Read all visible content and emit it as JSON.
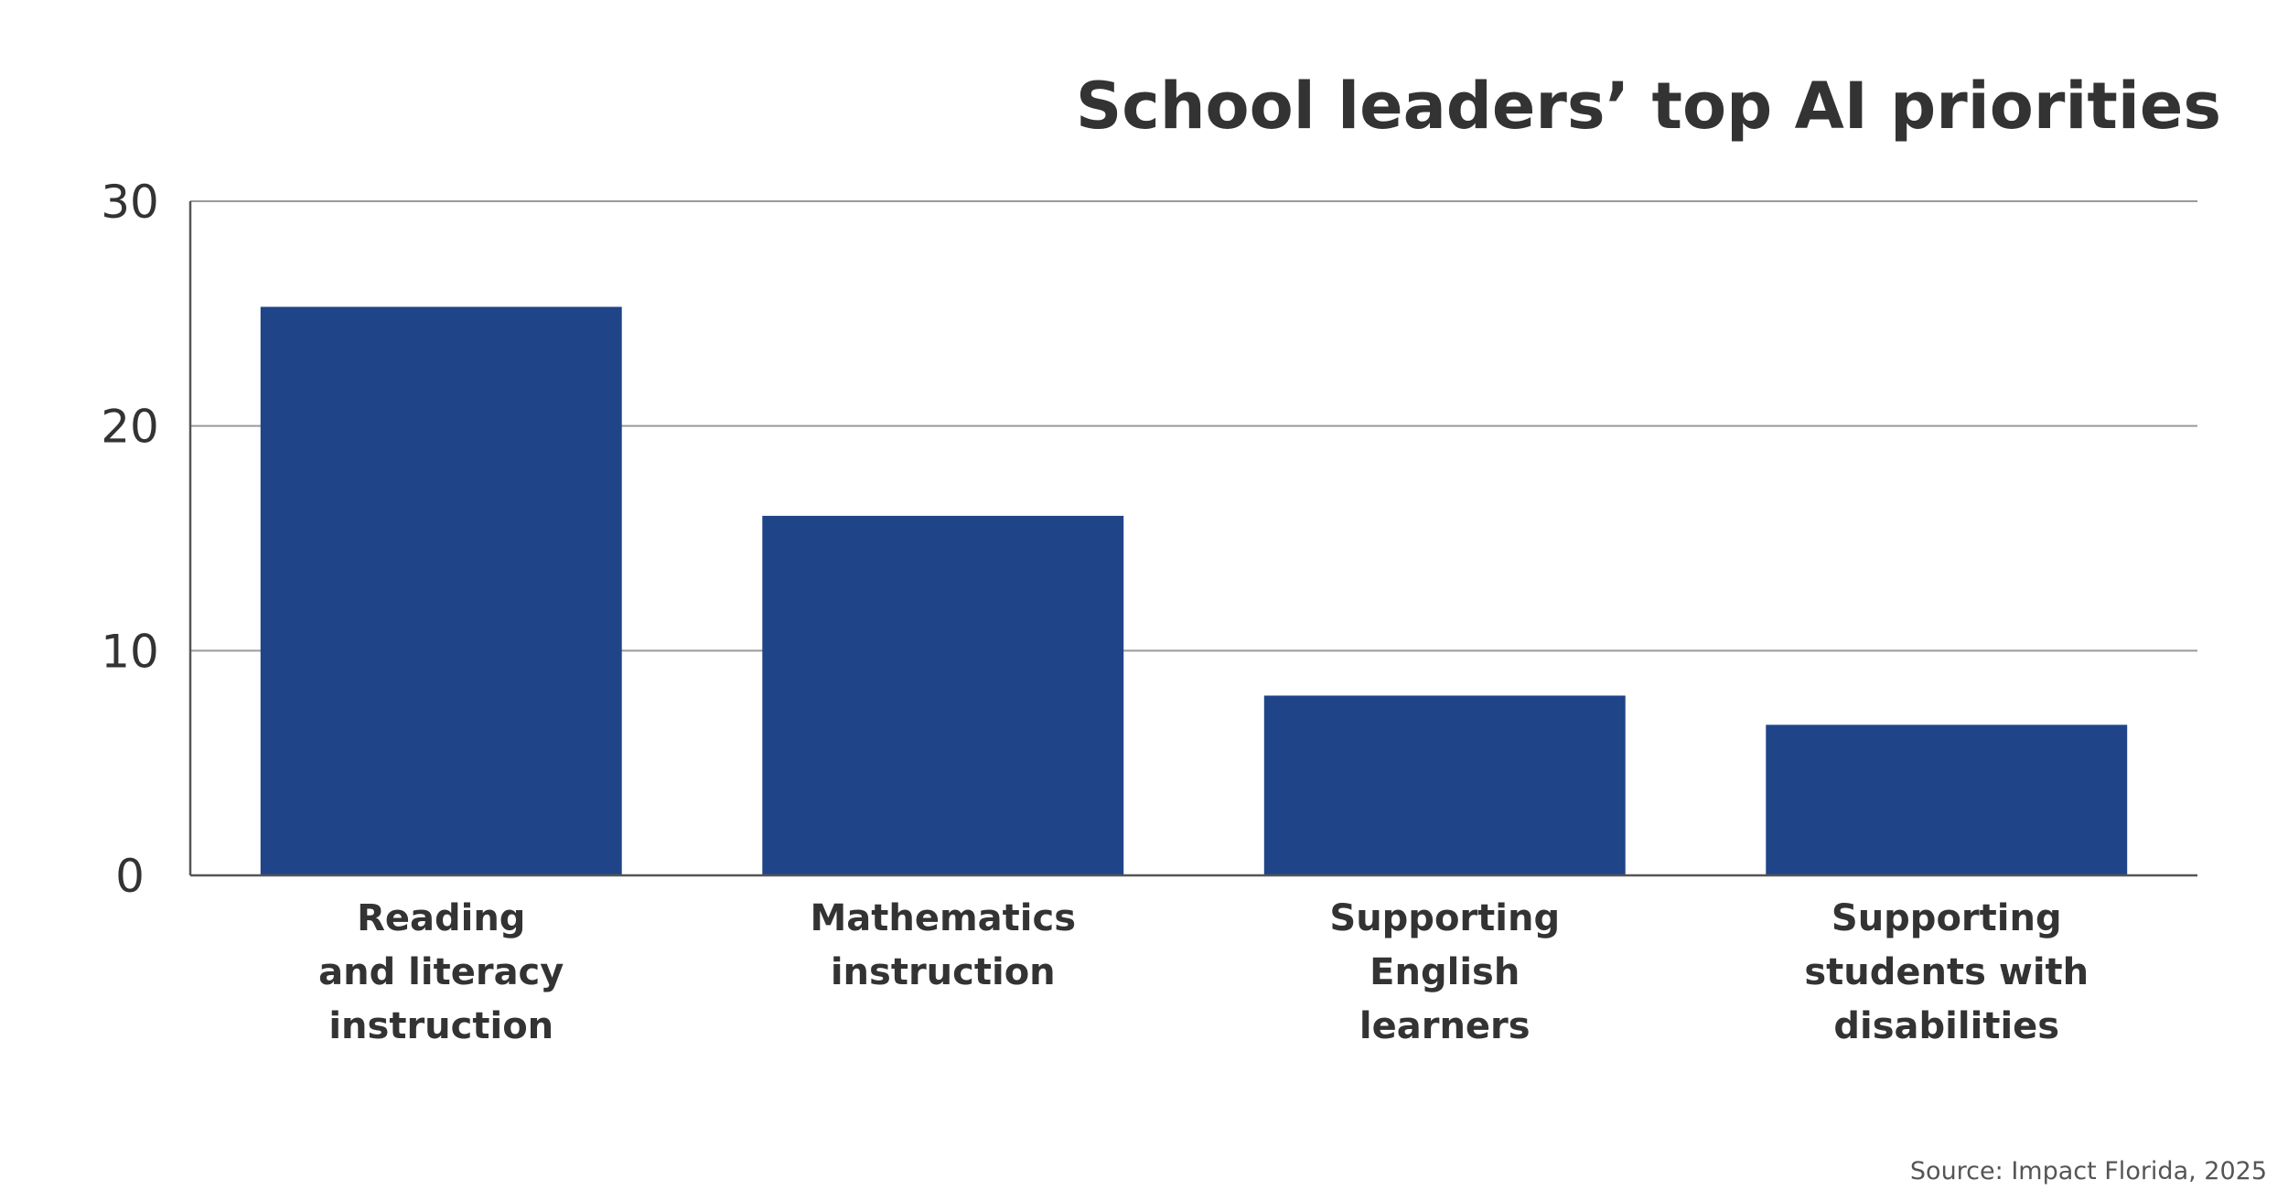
{
  "chart_data": {
    "type": "bar",
    "title": "School leaders’ top AI priorities",
    "xlabel": "",
    "ylabel": "",
    "categories": [
      [
        "Reading",
        "and literacy",
        "instruction"
      ],
      [
        "Mathematics",
        "instruction"
      ],
      [
        "Supporting",
        "English",
        "learners"
      ],
      [
        "Supporting",
        "students with",
        "disabilities"
      ]
    ],
    "values": [
      25.3,
      16.0,
      8.0,
      6.7
    ],
    "ylim": [
      0,
      30
    ],
    "yticks": [
      0,
      10,
      20,
      30
    ],
    "grid": true,
    "legend": "none",
    "bar_color": "#1f4488",
    "source": "Source: Impact Florida, 2025"
  }
}
